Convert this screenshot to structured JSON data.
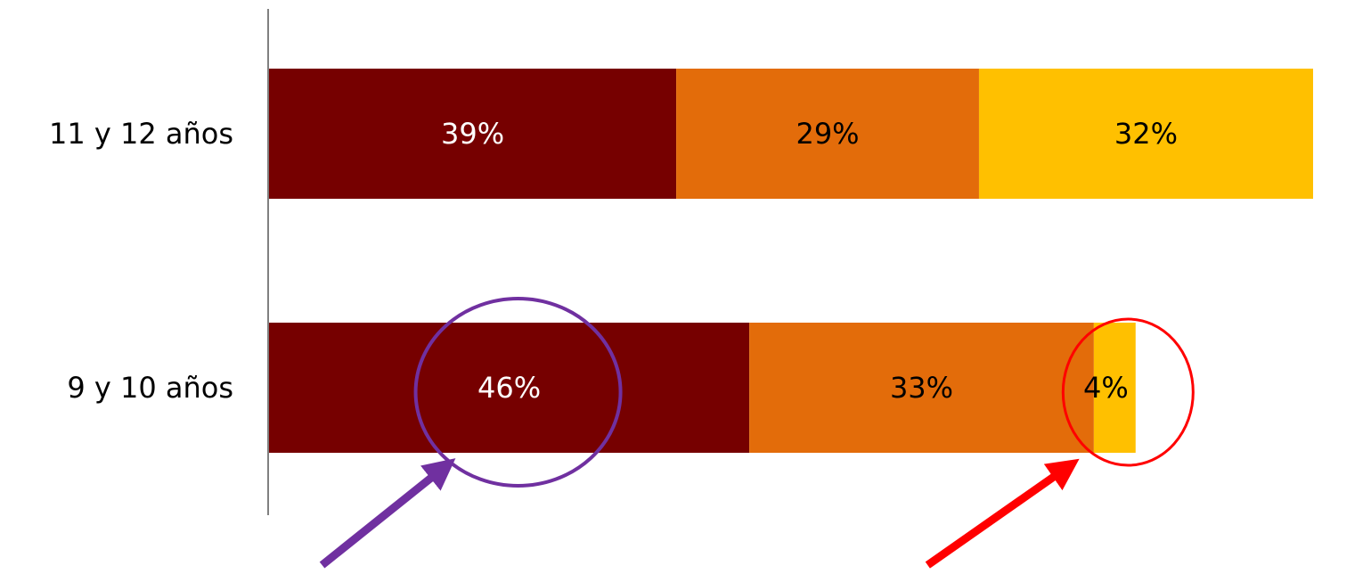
{
  "chart_data": {
    "type": "bar",
    "orientation": "horizontal",
    "stacked": true,
    "categories": [
      "11 y 12 años",
      "9 y 10 años"
    ],
    "series": [
      {
        "color": "#760000",
        "values": [
          39,
          46
        ],
        "labels": [
          "39%",
          "46%"
        ],
        "label_color": "#ffffff"
      },
      {
        "color": "#e36c0a",
        "values": [
          29,
          33
        ],
        "labels": [
          "29%",
          "33%"
        ],
        "label_color": "#000000"
      },
      {
        "color": "#ffc000",
        "values": [
          32,
          4
        ],
        "labels": [
          "32%",
          "4%"
        ],
        "label_color": "#000000"
      }
    ],
    "xlim": [
      0,
      100
    ],
    "grid": false,
    "legend": "none",
    "annotations": [
      {
        "shape": "ellipse",
        "color": "#7030a0",
        "target": "9 y 10 años / 46%"
      },
      {
        "shape": "arrow",
        "color": "#7030a0",
        "target": "9 y 10 años / 46%"
      },
      {
        "shape": "ellipse",
        "color": "#ff0000",
        "target": "9 y 10 años / 4%"
      },
      {
        "shape": "arrow",
        "color": "#ff0000",
        "target": "9 y 10 años / 4%"
      }
    ]
  }
}
